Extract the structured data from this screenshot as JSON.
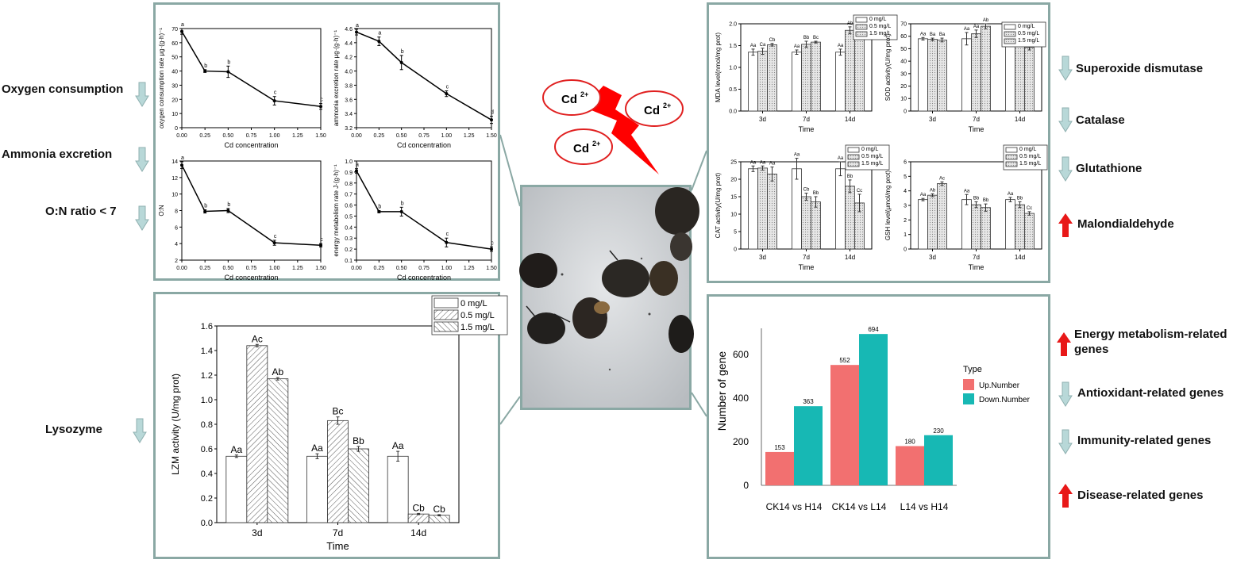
{
  "cd_ions": [
    "Cd",
    "Cd",
    "Cd"
  ],
  "cd_ion_charge": "2+",
  "left_labels": [
    "Oxygen consumption",
    "Ammonia excretion",
    "O:N ratio < 7",
    "Lysozyme"
  ],
  "right_labels_top": [
    "Superoxide dismutase",
    "Catalase",
    "Glutathione",
    "Malondialdehyde"
  ],
  "right_labels_bottom": [
    "Energy metabolism-related",
    "genes",
    "Antioxidant-related genes",
    "Immunity-related genes",
    "Disease-related genes"
  ],
  "colors": {
    "panel_border": "#8aa8a4",
    "down_arrow": "#b8d8d8",
    "up_arrow": "#e81818",
    "up_number": "#f27070",
    "down_number": "#17b8b4",
    "cd_bolt": "#ff0000",
    "cd_ring": "#e02020"
  },
  "chart_data": [
    {
      "id": "oxygen",
      "type": "line",
      "xlabel": "Cd concentration",
      "ylabel": "oxygen consumption rate μg·(g·h)⁻¹",
      "x": [
        0.0,
        0.25,
        0.5,
        1.0,
        1.5
      ],
      "y": [
        68,
        40,
        39.5,
        19,
        15
      ],
      "err": [
        2,
        1,
        4,
        3,
        2
      ],
      "labels": [
        "a",
        "b",
        "b",
        "c",
        "c"
      ],
      "xticks": [
        "0.00",
        "0.25",
        "0.50",
        "0.75",
        "1.00",
        "1.25",
        "1.50"
      ],
      "yticks": [
        "0",
        "10",
        "20",
        "30",
        "40",
        "50",
        "60",
        "70"
      ],
      "ylim": [
        0,
        70
      ]
    },
    {
      "id": "ammonia",
      "type": "line",
      "xlabel": "Cd concentration",
      "ylabel": "ammonia excretion rate μg·(g·h)⁻¹",
      "x": [
        0.0,
        0.25,
        0.5,
        1.0,
        1.5
      ],
      "y": [
        4.55,
        4.42,
        4.12,
        3.68,
        3.31
      ],
      "err": [
        0.04,
        0.06,
        0.1,
        0.04,
        0.05
      ],
      "labels": [
        "a",
        "a",
        "b",
        "c",
        "d"
      ],
      "xticks": [
        "0.00",
        "0.25",
        "0.50",
        "0.75",
        "1.00",
        "1.25",
        "1.50"
      ],
      "yticks": [
        "3.2",
        "3.4",
        "3.6",
        "3.8",
        "4.0",
        "4.2",
        "4.4",
        "4.6"
      ],
      "ylim": [
        3.2,
        4.6
      ]
    },
    {
      "id": "on_ratio",
      "type": "line",
      "xlabel": "Cd concentration",
      "ylabel": "O:N",
      "x": [
        0.0,
        0.25,
        0.5,
        1.0,
        1.5
      ],
      "y": [
        13.5,
        7.9,
        8.0,
        4.1,
        3.8
      ],
      "err": [
        0.4,
        0.2,
        0.25,
        0.3,
        0.2
      ],
      "labels": [
        "a",
        "b",
        "b",
        "c",
        "c"
      ],
      "xticks": [
        "0.00",
        "0.25",
        "0.50",
        "0.75",
        "1.00",
        "1.25",
        "1.50"
      ],
      "yticks": [
        "2",
        "4",
        "6",
        "8",
        "10",
        "12",
        "14"
      ],
      "ylim": [
        2,
        14
      ]
    },
    {
      "id": "energy",
      "type": "line",
      "xlabel": "Cd concentration",
      "ylabel": "energy metabolism rate J·(g·h)⁻¹",
      "x": [
        0.0,
        0.25,
        0.5,
        1.0,
        1.5
      ],
      "y": [
        0.91,
        0.54,
        0.54,
        0.26,
        0.2
      ],
      "err": [
        0.02,
        0.01,
        0.04,
        0.04,
        0.02
      ],
      "labels": [
        "a",
        "b",
        "b",
        "c",
        "c"
      ],
      "xticks": [
        "0.00",
        "0.25",
        "0.50",
        "0.75",
        "1.00",
        "1.25",
        "1.50"
      ],
      "yticks": [
        "0.1",
        "0.2",
        "0.3",
        "0.4",
        "0.5",
        "0.6",
        "0.7",
        "0.8",
        "0.9",
        "1.0"
      ],
      "ylim": [
        0.1,
        1.0
      ]
    },
    {
      "id": "mda",
      "type": "bar",
      "ylabel": "MDA level(nmol/mg prot)",
      "xlabel": "Time",
      "categories": [
        "3d",
        "7d",
        "14d"
      ],
      "legend": [
        "0 mg/L",
        "0.5 mg/L",
        "1.5 mg/L"
      ],
      "values": [
        [
          1.35,
          1.37,
          1.52
        ],
        [
          1.35,
          1.53,
          1.58
        ],
        [
          1.35,
          1.85,
          1.95
        ]
      ],
      "err": [
        [
          0.07,
          0.07,
          0.03
        ],
        [
          0.05,
          0.07,
          0.02
        ],
        [
          0.07,
          0.08,
          0.05
        ]
      ],
      "labels": [
        [
          "Aa",
          "Ca",
          "Cb"
        ],
        [
          "Aa",
          "Bb",
          "Bc"
        ],
        [
          "Aa",
          "Ab",
          "Ab"
        ]
      ],
      "yticks": [
        "0.0",
        "0.5",
        "1.0",
        "1.5",
        "2.0"
      ],
      "ylim": [
        0,
        2.0
      ]
    },
    {
      "id": "sod",
      "type": "bar",
      "ylabel": "SOD activity(U/mg prot)",
      "xlabel": "Time",
      "categories": [
        "3d",
        "7d",
        "14d"
      ],
      "legend": [
        "0 mg/L",
        "0.5 mg/L",
        "1.5 mg/L"
      ],
      "values": [
        [
          58,
          57.5,
          57
        ],
        [
          58,
          62,
          68
        ],
        [
          58,
          55,
          51
        ]
      ],
      "err": [
        [
          1,
          1,
          1.5
        ],
        [
          5,
          3,
          2
        ],
        [
          2,
          3,
          2
        ]
      ],
      "labels": [
        [
          "Aa",
          "Ba",
          "Ba"
        ],
        [
          "Aa",
          "Aa",
          "Ab"
        ],
        [
          "Aa",
          "Cb",
          "Cc"
        ]
      ],
      "yticks": [
        "0",
        "10",
        "20",
        "30",
        "40",
        "50",
        "60",
        "70"
      ],
      "ylim": [
        0,
        70
      ]
    },
    {
      "id": "cat",
      "type": "bar",
      "ylabel": "CAT activity(U/mg prot)",
      "xlabel": "Time",
      "categories": [
        "3d",
        "7d",
        "14d"
      ],
      "legend": [
        "0 mg/L",
        "0.5 mg/L",
        "1.5 mg/L"
      ],
      "values": [
        [
          23,
          23.2,
          21.5
        ],
        [
          23,
          15,
          13.5
        ],
        [
          23,
          18,
          13.2
        ]
      ],
      "err": [
        [
          0.8,
          0.6,
          2
        ],
        [
          3,
          1,
          1.5
        ],
        [
          2,
          1.8,
          2.5
        ]
      ],
      "labels": [
        [
          "Aa",
          "Aa",
          "Aa"
        ],
        [
          "Aa",
          "Cb",
          "Bb"
        ],
        [
          "Aa",
          "Bb",
          "Cc"
        ]
      ],
      "yticks": [
        "0",
        "5",
        "10",
        "15",
        "20",
        "25"
      ],
      "ylim": [
        0,
        25
      ]
    },
    {
      "id": "gsh",
      "type": "bar",
      "ylabel": "GSH level(μmol/mg prot)",
      "xlabel": "Time",
      "categories": [
        "3d",
        "7d",
        "14d"
      ],
      "legend": [
        "0 mg/L",
        "0.5 mg/L",
        "1.5 mg/L"
      ],
      "values": [
        [
          3.4,
          3.7,
          4.5
        ],
        [
          3.4,
          3.05,
          2.85
        ],
        [
          3.4,
          3.05,
          2.45
        ]
      ],
      "err": [
        [
          0.08,
          0.1,
          0.12
        ],
        [
          0.35,
          0.2,
          0.25
        ],
        [
          0.15,
          0.2,
          0.12
        ]
      ],
      "labels": [
        [
          "Aa",
          "Ab",
          "Ac"
        ],
        [
          "Aa",
          "Bb",
          "Bb"
        ],
        [
          "Aa",
          "Bb",
          "Cc"
        ]
      ],
      "yticks": [
        "0",
        "1",
        "2",
        "3",
        "4",
        "5",
        "6"
      ],
      "ylim": [
        0,
        6
      ]
    },
    {
      "id": "lzm",
      "type": "bar",
      "ylabel": "LZM activity (U/mg prot)",
      "xlabel": "Time",
      "categories": [
        "3d",
        "7d",
        "14d"
      ],
      "legend": [
        "0 mg/L",
        "0.5 mg/L",
        "1.5 mg/L"
      ],
      "values": [
        [
          0.54,
          1.44,
          1.17
        ],
        [
          0.54,
          0.83,
          0.6
        ],
        [
          0.54,
          0.07,
          0.06
        ]
      ],
      "err": [
        [
          0.01,
          0.01,
          0.01
        ],
        [
          0.02,
          0.03,
          0.02
        ],
        [
          0.04,
          0.005,
          0.005
        ]
      ],
      "labels": [
        [
          "Aa",
          "Ac",
          "Ab"
        ],
        [
          "Aa",
          "Bc",
          "Bb"
        ],
        [
          "Aa",
          "Cb",
          "Cb"
        ]
      ],
      "yticks": [
        "0.0",
        "0.2",
        "0.4",
        "0.6",
        "0.8",
        "1.0",
        "1.2",
        "1.4",
        "1.6"
      ],
      "ylim": [
        0,
        1.6
      ]
    },
    {
      "id": "genes",
      "type": "bar",
      "ylabel": "Number of gene",
      "categories": [
        "CK14 vs H14",
        "CK14 vs L14",
        "L14 vs H14"
      ],
      "legend_title": "Type",
      "series": [
        {
          "name": "Up.Number",
          "values": [
            153,
            552,
            180
          ]
        },
        {
          "name": "Down.Number",
          "values": [
            363,
            694,
            230
          ]
        }
      ],
      "yticks": [
        "0",
        "200",
        "400",
        "600"
      ],
      "ylim": [
        0,
        720
      ]
    }
  ]
}
